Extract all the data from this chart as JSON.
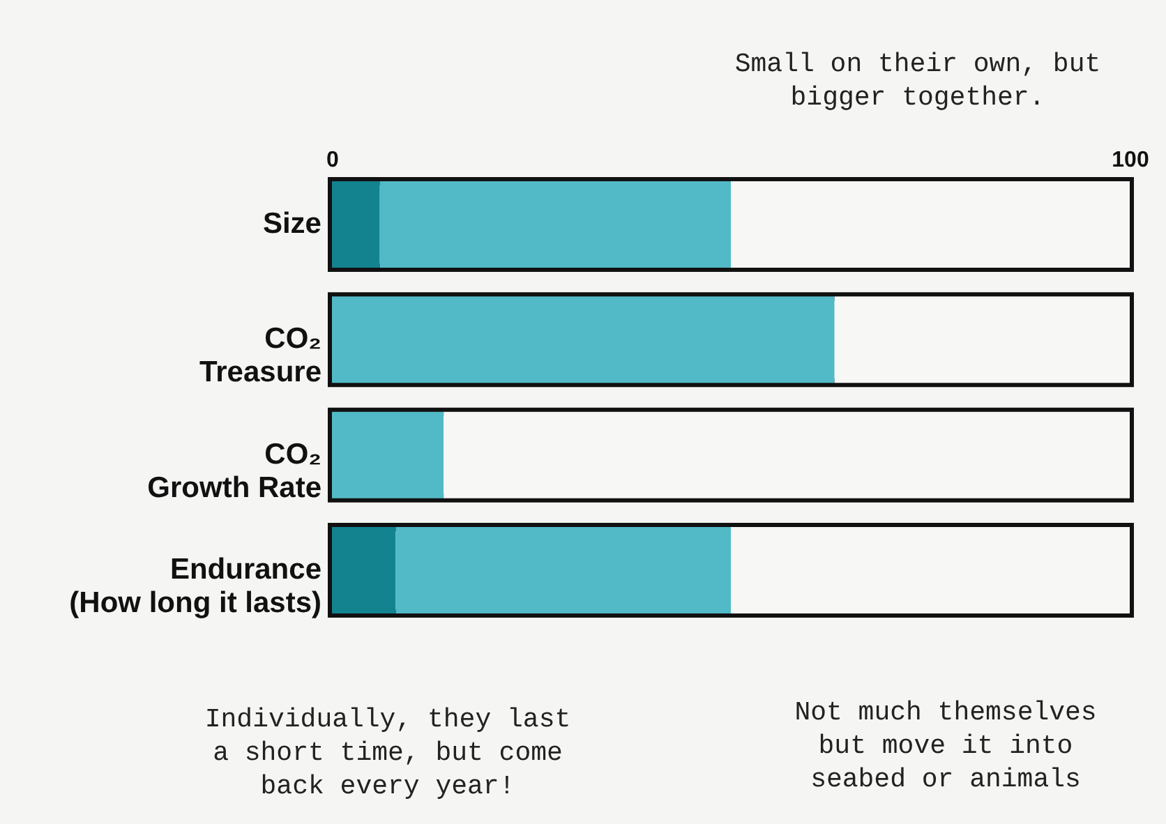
{
  "chart_data": {
    "type": "bar",
    "orientation": "horizontal",
    "stacked": true,
    "categories": [
      "Size",
      "CO₂\nTreasure",
      "CO₂\nGrowth Rate",
      "Endurance\n(How long it lasts)"
    ],
    "series": [
      {
        "color": "#138390",
        "values": [
          6,
          null,
          null,
          8
        ]
      },
      {
        "color": "#52bac6",
        "values": [
          44,
          63,
          14,
          42
        ]
      },
      {
        "color": "#f7f7f5",
        "values": [
          50,
          37,
          86,
          50
        ]
      }
    ],
    "xlim": [
      0,
      100
    ],
    "xticks": [
      0,
      100
    ],
    "grid": false,
    "legend": false,
    "annotations": [
      "Small on their own, but\nbigger together.",
      "Individually, they last\na short time, but come\nback every year!",
      "Not much themselves\nbut move it into\nseabed or animals"
    ]
  }
}
